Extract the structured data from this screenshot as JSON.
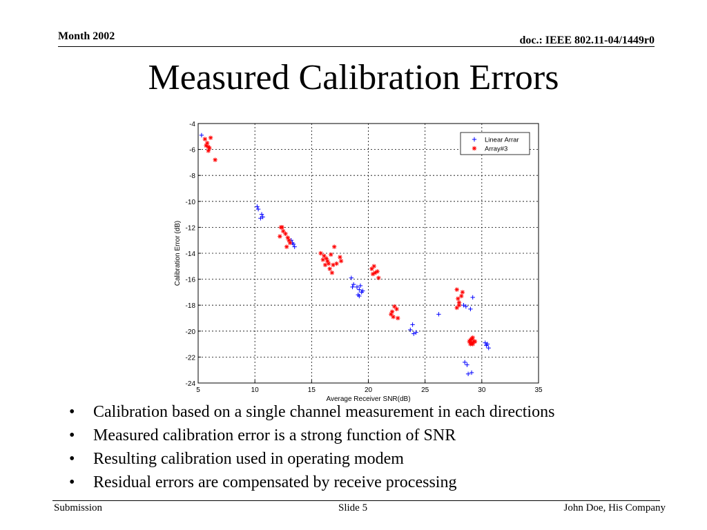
{
  "header": {
    "left": "Month 2002",
    "right": "doc.: IEEE 802.11-04/1449r0"
  },
  "slide_title": "Measured Calibration Errors",
  "bullets": [
    "Calibration based on a single channel measurement in each directions",
    "Measured calibration error is a strong function of SNR",
    "Resulting calibration used in operating modem",
    "Residual errors are compensated by receive processing"
  ],
  "bullet_glyph": "•",
  "footer": {
    "left": "Submission",
    "center": "Slide 5",
    "right": "John Doe, His Company"
  },
  "chart_data": {
    "type": "scatter",
    "xlabel": "Average Receiver SNR(dB)",
    "ylabel": "Calibration Error (dB)",
    "xlim": [
      5,
      35
    ],
    "ylim": [
      -24,
      -4
    ],
    "xticks": [
      5,
      10,
      15,
      20,
      25,
      30,
      35
    ],
    "yticks": [
      -4,
      -6,
      -8,
      -10,
      -12,
      -14,
      -16,
      -18,
      -20,
      -22,
      -24
    ],
    "grid": true,
    "legend_position": "top-right",
    "series": [
      {
        "name": "Linear Arrar",
        "marker": "+",
        "color": "#0000ff",
        "points": [
          [
            5.3,
            -4.9
          ],
          [
            10.2,
            -10.4
          ],
          [
            10.3,
            -10.6
          ],
          [
            10.6,
            -11.0
          ],
          [
            10.5,
            -11.3
          ],
          [
            10.7,
            -11.2
          ],
          [
            13.2,
            -13.0
          ],
          [
            13.4,
            -13.3
          ],
          [
            13.5,
            -13.5
          ],
          [
            13.3,
            -13.2
          ],
          [
            18.5,
            -15.9
          ],
          [
            18.7,
            -16.4
          ],
          [
            18.6,
            -16.6
          ],
          [
            19.0,
            -16.6
          ],
          [
            19.2,
            -16.8
          ],
          [
            19.4,
            -17.0
          ],
          [
            19.1,
            -17.2
          ],
          [
            19.3,
            -16.5
          ],
          [
            19.5,
            -16.9
          ],
          [
            19.2,
            -17.3
          ],
          [
            23.7,
            -19.9
          ],
          [
            23.9,
            -19.5
          ],
          [
            24.0,
            -20.2
          ],
          [
            24.2,
            -20.1
          ],
          [
            26.2,
            -18.7
          ],
          [
            28.4,
            -18.0
          ],
          [
            28.6,
            -18.1
          ],
          [
            29.0,
            -18.3
          ],
          [
            29.2,
            -17.4
          ],
          [
            28.5,
            -22.4
          ],
          [
            28.7,
            -22.6
          ],
          [
            28.8,
            -23.3
          ],
          [
            29.1,
            -23.2
          ],
          [
            30.3,
            -20.9
          ],
          [
            30.5,
            -21.0
          ],
          [
            30.6,
            -21.3
          ],
          [
            30.4,
            -21.1
          ]
        ]
      },
      {
        "name": "Array#3",
        "marker": "*",
        "color": "#ff0000",
        "points": [
          [
            5.6,
            -5.2
          ],
          [
            5.8,
            -5.5
          ],
          [
            5.9,
            -5.8
          ],
          [
            6.0,
            -5.9
          ],
          [
            5.9,
            -6.1
          ],
          [
            6.1,
            -5.1
          ],
          [
            5.7,
            -5.7
          ],
          [
            6.5,
            -6.8
          ],
          [
            12.3,
            -12.0
          ],
          [
            12.5,
            -12.3
          ],
          [
            12.7,
            -12.5
          ],
          [
            12.2,
            -12.7
          ],
          [
            12.9,
            -12.8
          ],
          [
            13.0,
            -13.0
          ],
          [
            12.8,
            -13.5
          ],
          [
            12.4,
            -12.0
          ],
          [
            13.1,
            -13.2
          ],
          [
            15.8,
            -14.0
          ],
          [
            16.1,
            -14.2
          ],
          [
            16.3,
            -14.4
          ],
          [
            16.4,
            -14.6
          ],
          [
            16.5,
            -14.8
          ],
          [
            16.6,
            -15.2
          ],
          [
            16.8,
            -15.5
          ],
          [
            16.9,
            -14.9
          ],
          [
            17.0,
            -13.5
          ],
          [
            17.2,
            -14.8
          ],
          [
            17.5,
            -14.3
          ],
          [
            17.6,
            -14.6
          ],
          [
            16.2,
            -14.9
          ],
          [
            16.0,
            -14.5
          ],
          [
            16.7,
            -14.1
          ],
          [
            20.3,
            -15.2
          ],
          [
            20.5,
            -15.0
          ],
          [
            20.6,
            -15.5
          ],
          [
            20.8,
            -15.4
          ],
          [
            20.9,
            -15.9
          ],
          [
            20.4,
            -15.6
          ],
          [
            22.1,
            -18.5
          ],
          [
            22.3,
            -18.1
          ],
          [
            22.5,
            -18.3
          ],
          [
            22.2,
            -18.9
          ],
          [
            22.6,
            -19.0
          ],
          [
            22.0,
            -18.7
          ],
          [
            27.8,
            -16.8
          ],
          [
            27.9,
            -17.5
          ],
          [
            28.0,
            -17.8
          ],
          [
            27.8,
            -18.2
          ],
          [
            28.2,
            -17.3
          ],
          [
            28.3,
            -17.0
          ],
          [
            28.0,
            -18.0
          ],
          [
            28.9,
            -20.8
          ],
          [
            29.0,
            -20.7
          ],
          [
            29.1,
            -20.9
          ],
          [
            29.2,
            -20.5
          ],
          [
            29.3,
            -20.8
          ],
          [
            29.1,
            -20.6
          ],
          [
            29.0,
            -21.0
          ],
          [
            29.4,
            -20.8
          ],
          [
            29.2,
            -21.0
          ]
        ]
      }
    ]
  }
}
